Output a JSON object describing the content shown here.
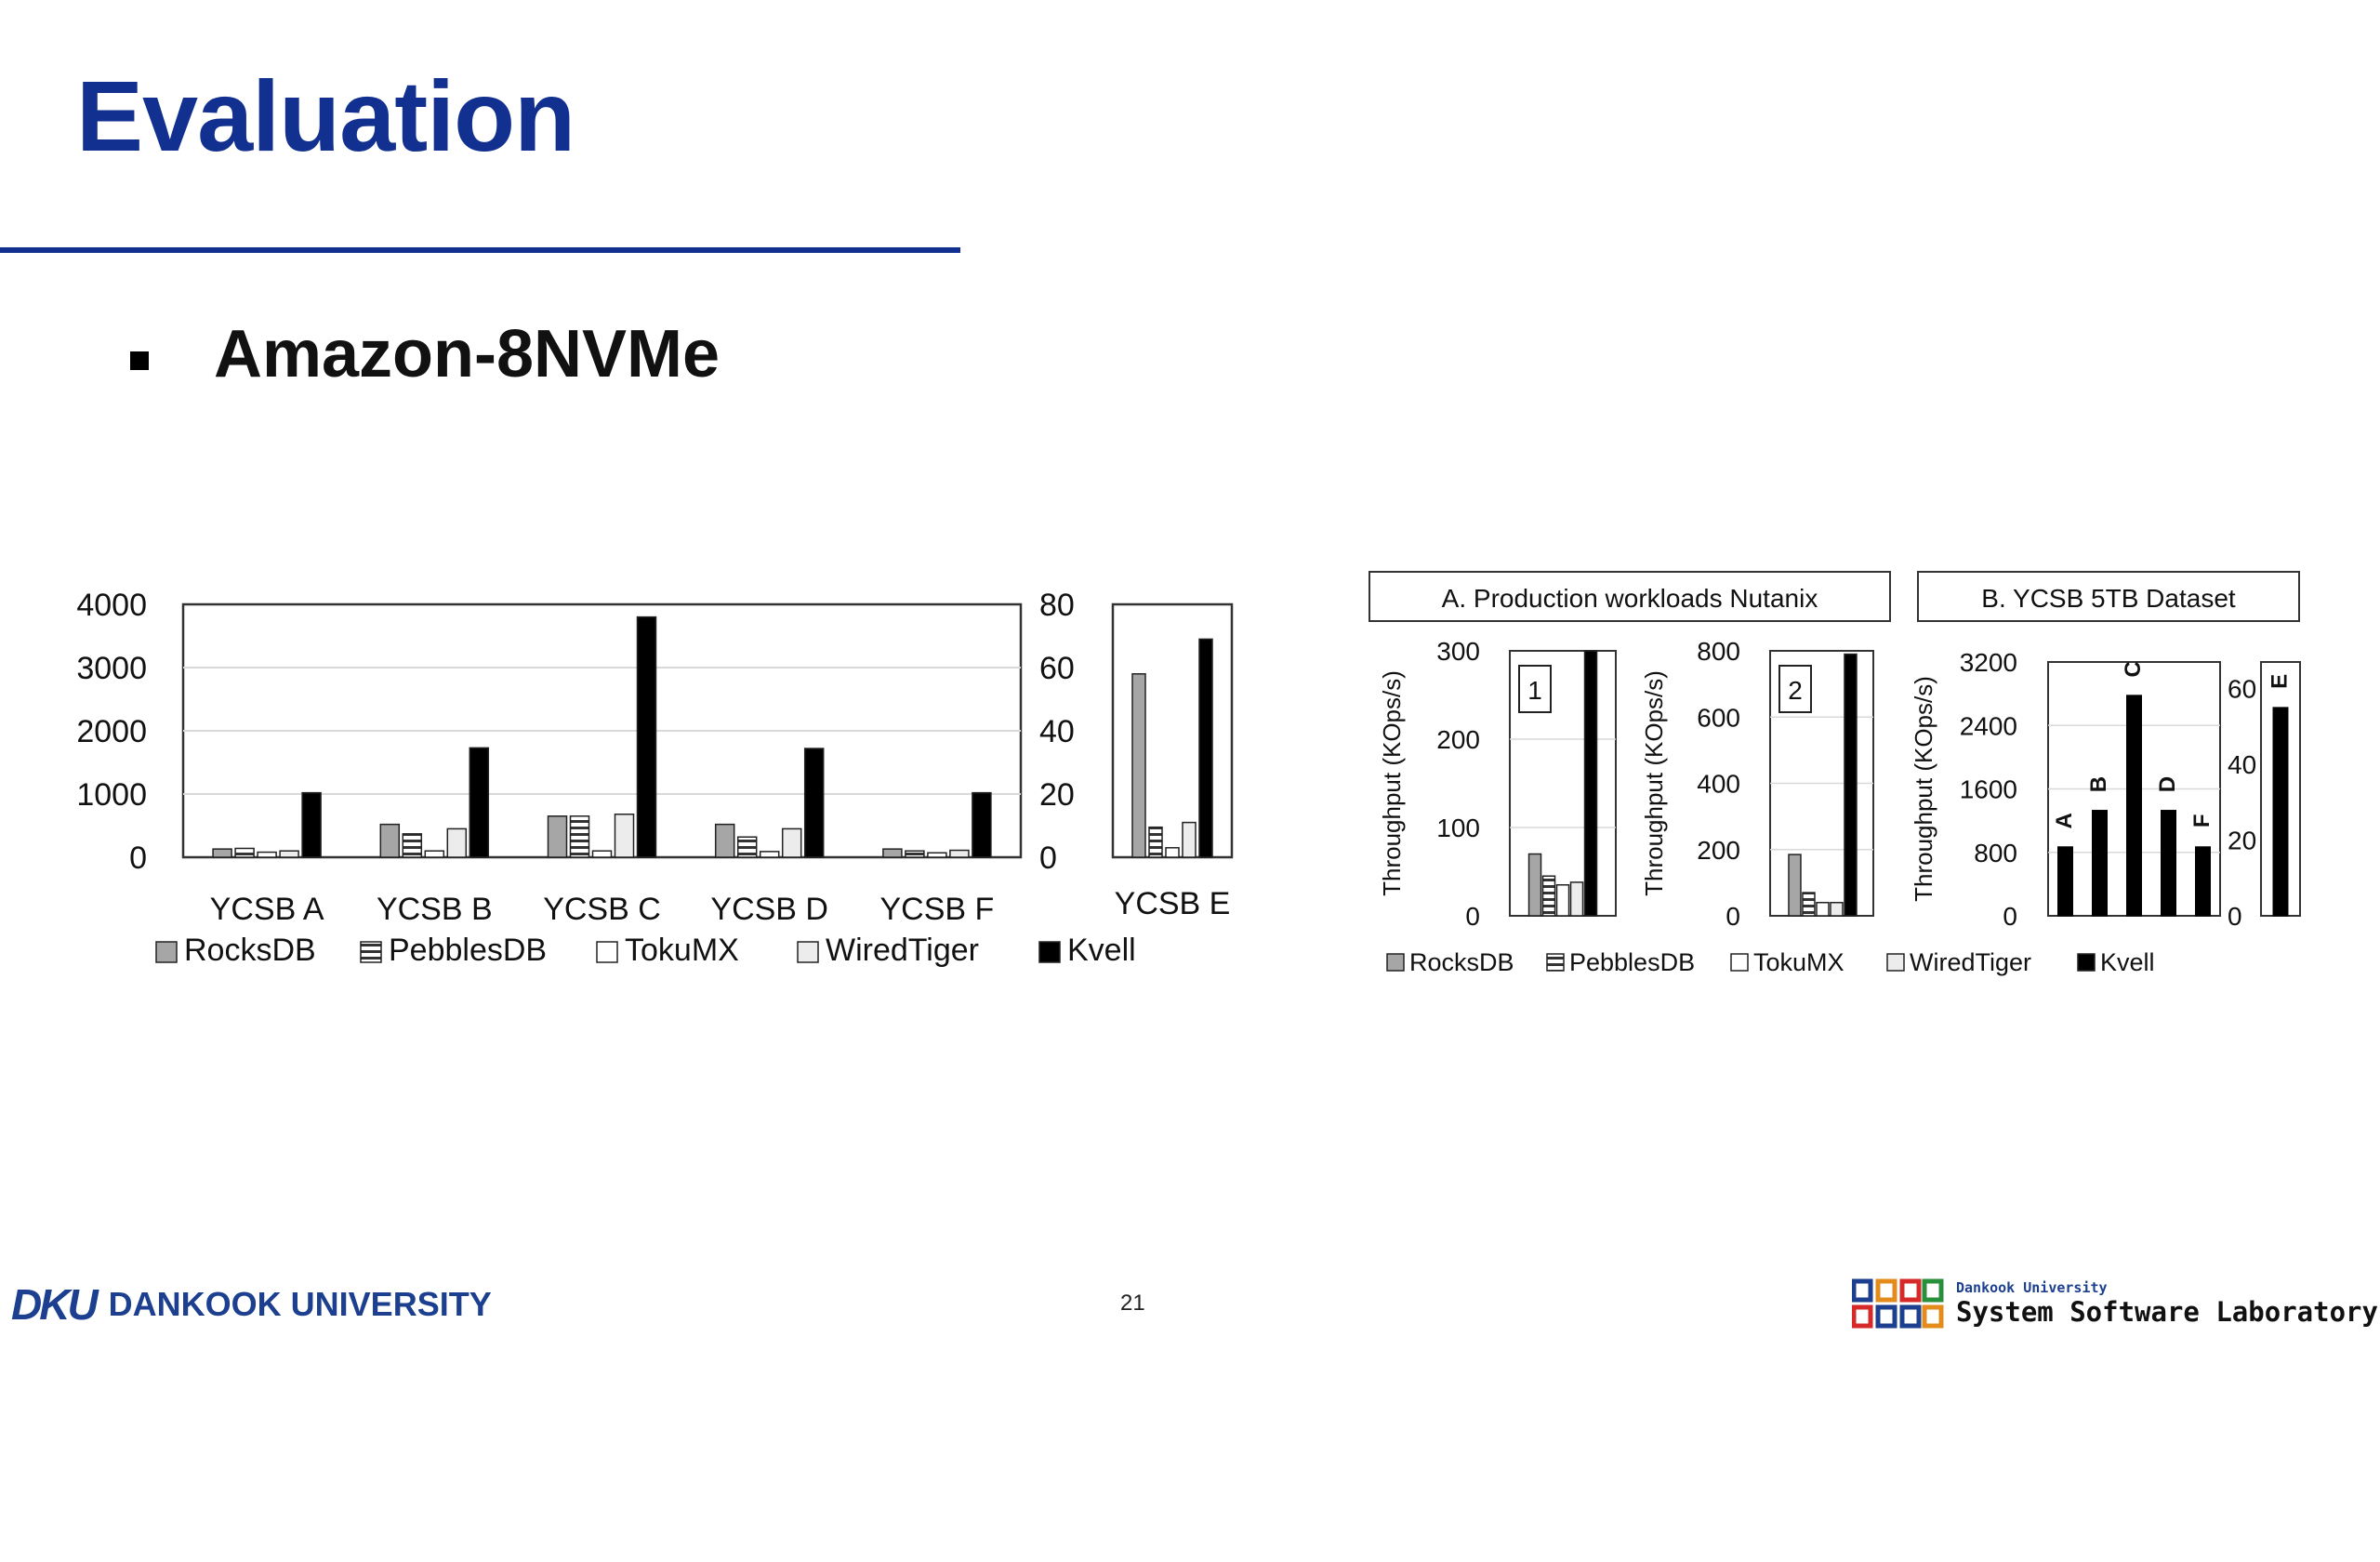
{
  "slide": {
    "title": "Evaluation",
    "subtitle": "Amazon-8NVMe",
    "page_number": "21",
    "footer_left": "DANKOOK UNIVERSITY",
    "footer_right_small": "Dankook University",
    "footer_right_big": "System Software Laboratory",
    "accent": "#12308f"
  },
  "chart_data": [
    {
      "type": "bar",
      "panel": "left-main",
      "categories": [
        "YCSB A",
        "YCSB B",
        "YCSB C",
        "YCSB D",
        "YCSB F"
      ],
      "ylim": [
        0,
        4000
      ],
      "yticks": [
        "4000",
        "3000",
        "2000",
        "1000",
        "0"
      ],
      "grid": true,
      "series": [
        {
          "name": "RocksDB",
          "values": [
            130,
            520,
            650,
            520,
            130
          ],
          "color": "#a6a6a6",
          "pattern": "solid"
        },
        {
          "name": "PebblesDB",
          "values": [
            140,
            370,
            650,
            320,
            100
          ],
          "color": "#7f7f7f",
          "pattern": "hlines"
        },
        {
          "name": "TokuMX",
          "values": [
            80,
            100,
            100,
            90,
            70
          ],
          "color": "#ffffff",
          "pattern": "solid"
        },
        {
          "name": "WiredTiger",
          "values": [
            100,
            450,
            680,
            450,
            110
          ],
          "color": "#ececec",
          "pattern": "solid"
        },
        {
          "name": "Kvell",
          "values": [
            1020,
            1730,
            3800,
            1720,
            1020
          ],
          "color": "#000000",
          "pattern": "solid"
        }
      ]
    },
    {
      "type": "bar",
      "panel": "left-e",
      "categories": [
        "YCSB E"
      ],
      "ylim": [
        0,
        80
      ],
      "yticks": [
        "80",
        "60",
        "40",
        "20",
        "0"
      ],
      "series": [
        {
          "name": "RocksDB",
          "values": [
            58
          ]
        },
        {
          "name": "PebblesDB",
          "values": [
            9.5
          ]
        },
        {
          "name": "TokuMX",
          "values": [
            3
          ]
        },
        {
          "name": "WiredTiger",
          "values": [
            11
          ]
        },
        {
          "name": "Kvell",
          "values": [
            69
          ]
        }
      ]
    },
    {
      "type": "bar",
      "panel": "right-a1",
      "group_title": "A. Production workloads Nutanix",
      "box_label": "1",
      "ylabel": "Throughput (KOps/s)",
      "ylim": [
        0,
        300
      ],
      "yticks": [
        "300",
        "200",
        "100",
        "0"
      ],
      "series": [
        {
          "name": "RocksDB",
          "values": [
            70
          ]
        },
        {
          "name": "PebblesDB",
          "values": [
            45
          ]
        },
        {
          "name": "TokuMX",
          "values": [
            35
          ]
        },
        {
          "name": "WiredTiger",
          "values": [
            38
          ]
        },
        {
          "name": "Kvell",
          "values": [
            300
          ]
        }
      ]
    },
    {
      "type": "bar",
      "panel": "right-a2",
      "box_label": "2",
      "ylabel": "Throughput (KOps/s)",
      "ylim": [
        0,
        800
      ],
      "yticks": [
        "800",
        "600",
        "400",
        "200",
        "0"
      ],
      "series": [
        {
          "name": "RocksDB",
          "values": [
            185
          ]
        },
        {
          "name": "PebblesDB",
          "values": [
            70
          ]
        },
        {
          "name": "TokuMX",
          "values": [
            40
          ]
        },
        {
          "name": "WiredTiger",
          "values": [
            40
          ]
        },
        {
          "name": "Kvell",
          "values": [
            790
          ]
        }
      ]
    },
    {
      "type": "bar",
      "panel": "right-b",
      "group_title": "B. YCSB 5TB Dataset",
      "ylabel": "Throughput (KOps/s)",
      "ylim": [
        0,
        3200
      ],
      "yticks": [
        "3200",
        "2400",
        "1600",
        "800",
        "0"
      ],
      "categories": [
        "A",
        "B",
        "C",
        "D",
        "F"
      ],
      "series": [
        {
          "name": "Kvell",
          "values": [
            870,
            1330,
            2780,
            1330,
            870
          ]
        }
      ]
    },
    {
      "type": "bar",
      "panel": "right-e",
      "ylim": [
        0,
        67
      ],
      "yticks": [
        "60",
        "40",
        "20",
        "0"
      ],
      "categories": [
        "E"
      ],
      "series": [
        {
          "name": "Kvell",
          "values": [
            55
          ]
        }
      ]
    }
  ],
  "legend_items": [
    "RocksDB",
    "PebblesDB",
    "TokuMX",
    "WiredTiger",
    "Kvell"
  ]
}
